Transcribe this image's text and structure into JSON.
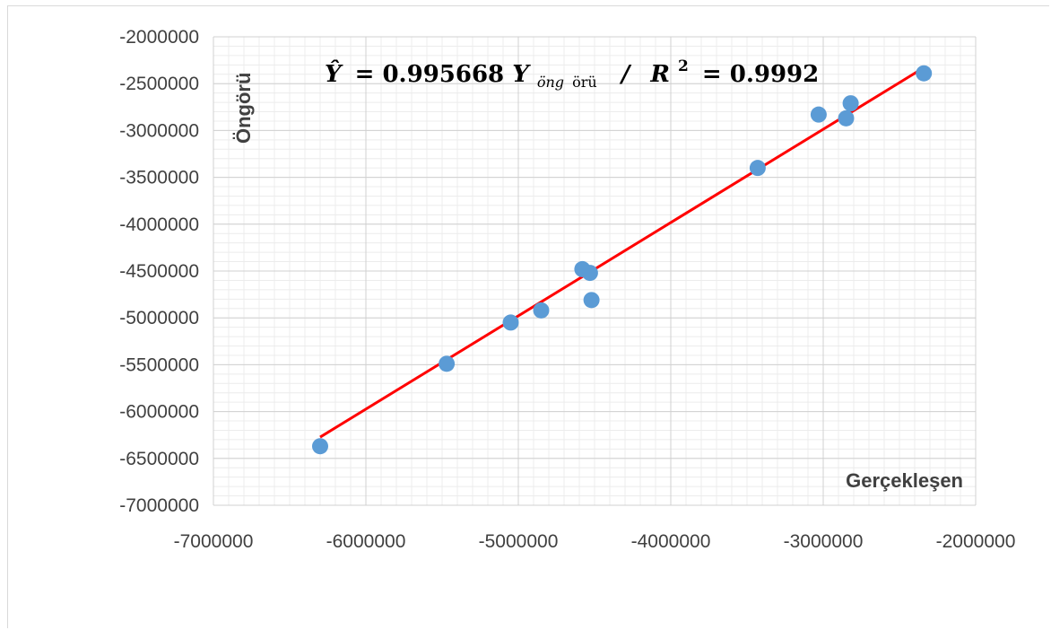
{
  "chart_data": {
    "type": "scatter",
    "xlabel": "Gerçekleşen",
    "ylabel": "Öngörü",
    "xlim": [
      -7000000,
      -2000000
    ],
    "ylim": [
      -7000000,
      -2000000
    ],
    "x_ticks": [
      "-7000000",
      "-6000000",
      "-5000000",
      "-4000000",
      "-3000000",
      "-2000000"
    ],
    "y_ticks": [
      "-2000000",
      "-2500000",
      "-3000000",
      "-3500000",
      "-4000000",
      "-4500000",
      "-5000000",
      "-5500000",
      "-6000000",
      "-6500000",
      "-7000000"
    ],
    "grid": true,
    "minor_grid": true,
    "equation": {
      "yhat": "Ŷ",
      "equals1": "= 0.995668",
      "y": "Y",
      "subscript_a": "öng",
      "subscript_b": "örü",
      "separator": "/",
      "r": "R",
      "sup": "2",
      "equals2": "= 0.9992"
    },
    "series": [
      {
        "marker_color": "#5b9bd5",
        "points": [
          {
            "x": -6300000,
            "y": -6370000
          },
          {
            "x": -5470000,
            "y": -5490000
          },
          {
            "x": -5050000,
            "y": -5050000
          },
          {
            "x": -4850000,
            "y": -4920000
          },
          {
            "x": -4580000,
            "y": -4480000
          },
          {
            "x": -4530000,
            "y": -4520000
          },
          {
            "x": -4520000,
            "y": -4810000
          },
          {
            "x": -3430000,
            "y": -3400000
          },
          {
            "x": -3030000,
            "y": -2830000
          },
          {
            "x": -2850000,
            "y": -2870000
          },
          {
            "x": -2820000,
            "y": -2710000
          },
          {
            "x": -2340000,
            "y": -2390000
          }
        ]
      }
    ],
    "trendline": {
      "color": "#ff0000",
      "x_start": -6300000,
      "x_end": -2340000,
      "slope": 0.995668
    }
  }
}
